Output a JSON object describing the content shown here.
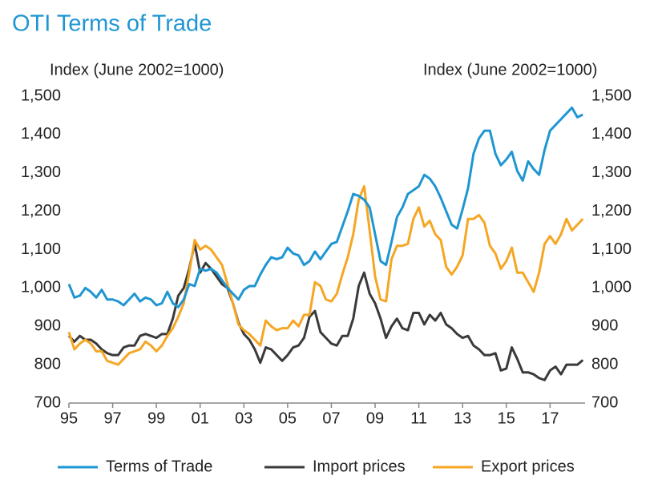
{
  "chart_data": {
    "type": "line",
    "title": "OTI Terms of Trade",
    "ylabel": "Index (June 2002=1000)",
    "y2label": "Index (June 2002=1000)",
    "x": [
      1995,
      1995.25,
      1995.5,
      1995.75,
      1996,
      1996.25,
      1996.5,
      1996.75,
      1997,
      1997.25,
      1997.5,
      1997.75,
      1998,
      1998.25,
      1998.5,
      1998.75,
      1999,
      1999.25,
      1999.5,
      1999.75,
      2000,
      2000.25,
      2000.5,
      2000.75,
      2001,
      2001.25,
      2001.5,
      2001.75,
      2002,
      2002.25,
      2002.5,
      2002.75,
      2003,
      2003.25,
      2003.5,
      2003.75,
      2004,
      2004.25,
      2004.5,
      2004.75,
      2005,
      2005.25,
      2005.5,
      2005.75,
      2006,
      2006.25,
      2006.5,
      2006.75,
      2007,
      2007.25,
      2007.5,
      2007.75,
      2008,
      2008.25,
      2008.5,
      2008.75,
      2009,
      2009.25,
      2009.5,
      2009.75,
      2010,
      2010.25,
      2010.5,
      2010.75,
      2011,
      2011.25,
      2011.5,
      2011.75,
      2012,
      2012.25,
      2012.5,
      2012.75,
      2013,
      2013.25,
      2013.5,
      2013.75,
      2014,
      2014.25,
      2014.5,
      2014.75,
      2015,
      2015.25,
      2015.5,
      2015.75,
      2016,
      2016.25,
      2016.5,
      2016.75,
      2017,
      2017.25,
      2017.5,
      2017.75,
      2018,
      2018.25,
      2018.5
    ],
    "series": [
      {
        "name": "Terms of Trade",
        "color": "#1f96d2",
        "values": [
          1010,
          975,
          980,
          1000,
          990,
          975,
          995,
          970,
          970,
          965,
          955,
          970,
          985,
          965,
          975,
          970,
          955,
          960,
          990,
          960,
          950,
          970,
          1010,
          1005,
          1050,
          1045,
          1050,
          1040,
          1020,
          1000,
          985,
          970,
          995,
          1005,
          1005,
          1035,
          1060,
          1080,
          1075,
          1080,
          1105,
          1090,
          1085,
          1060,
          1070,
          1095,
          1075,
          1095,
          1115,
          1120,
          1160,
          1200,
          1245,
          1240,
          1230,
          1210,
          1140,
          1070,
          1060,
          1120,
          1185,
          1210,
          1245,
          1255,
          1265,
          1295,
          1285,
          1265,
          1235,
          1200,
          1165,
          1155,
          1205,
          1260,
          1350,
          1390,
          1410,
          1410,
          1350,
          1320,
          1335,
          1355,
          1305,
          1280,
          1330,
          1310,
          1295,
          1360,
          1410,
          1425,
          1440,
          1455,
          1470,
          1445,
          1452
        ]
      },
      {
        "name": "Import prices",
        "color": "#3a3a3a",
        "values": [
          875,
          860,
          875,
          865,
          865,
          855,
          840,
          830,
          825,
          825,
          845,
          850,
          850,
          875,
          880,
          875,
          870,
          880,
          880,
          920,
          980,
          1000,
          1050,
          1115,
          1040,
          1065,
          1050,
          1030,
          1010,
          1000,
          960,
          910,
          880,
          865,
          840,
          805,
          845,
          840,
          825,
          810,
          825,
          845,
          850,
          870,
          925,
          940,
          885,
          870,
          855,
          850,
          875,
          875,
          920,
          1005,
          1040,
          985,
          960,
          920,
          870,
          900,
          920,
          895,
          890,
          935,
          935,
          905,
          930,
          915,
          935,
          905,
          895,
          880,
          870,
          875,
          850,
          840,
          825,
          825,
          830,
          785,
          790,
          845,
          815,
          780,
          780,
          775,
          765,
          760,
          785,
          795,
          775,
          800,
          800,
          800,
          812
        ]
      },
      {
        "name": "Export prices",
        "color": "#f5a623",
        "values": [
          885,
          840,
          855,
          865,
          855,
          835,
          835,
          810,
          805,
          800,
          815,
          830,
          835,
          840,
          860,
          850,
          835,
          850,
          875,
          895,
          925,
          960,
          1040,
          1125,
          1100,
          1110,
          1100,
          1080,
          1060,
          1010,
          960,
          905,
          890,
          880,
          865,
          850,
          915,
          900,
          890,
          895,
          895,
          915,
          900,
          930,
          930,
          1015,
          1005,
          970,
          965,
          985,
          1035,
          1080,
          1140,
          1230,
          1265,
          1150,
          1030,
          970,
          965,
          1075,
          1110,
          1110,
          1115,
          1180,
          1210,
          1160,
          1175,
          1140,
          1125,
          1055,
          1035,
          1055,
          1085,
          1180,
          1180,
          1190,
          1170,
          1110,
          1090,
          1050,
          1070,
          1105,
          1040,
          1040,
          1015,
          990,
          1040,
          1115,
          1135,
          1115,
          1140,
          1180,
          1150,
          1165,
          1180
        ]
      }
    ],
    "xlim": [
      1995,
      2018.6
    ],
    "xticks": [
      {
        "value": 1995,
        "label": "95"
      },
      {
        "value": 1997,
        "label": "97"
      },
      {
        "value": 1999,
        "label": "99"
      },
      {
        "value": 2001,
        "label": "01"
      },
      {
        "value": 2003,
        "label": "03"
      },
      {
        "value": 2005,
        "label": "05"
      },
      {
        "value": 2007,
        "label": "07"
      },
      {
        "value": 2009,
        "label": "09"
      },
      {
        "value": 2011,
        "label": "11"
      },
      {
        "value": 2013,
        "label": "13"
      },
      {
        "value": 2015,
        "label": "15"
      },
      {
        "value": 2017,
        "label": "17"
      }
    ],
    "ylim": [
      700,
      1500
    ],
    "yticks": [
      700,
      800,
      900,
      {
        "value": 1000,
        "label": "1,000"
      },
      {
        "value": 1100,
        "label": "1,100"
      },
      {
        "value": 1200,
        "label": "1,200"
      },
      {
        "value": 1300,
        "label": "1,300"
      },
      {
        "value": 1400,
        "label": "1,400"
      },
      {
        "value": 1500,
        "label": "1,500"
      }
    ],
    "y2lim": [
      700,
      1500
    ],
    "y2ticks": [
      700,
      800,
      900,
      {
        "value": 1000,
        "label": "1,000"
      },
      {
        "value": 1100,
        "label": "1,100"
      },
      {
        "value": 1200,
        "label": "1,200"
      },
      {
        "value": 1300,
        "label": "1,300"
      },
      {
        "value": 1400,
        "label": "1,400"
      },
      {
        "value": 1500,
        "label": "1,500"
      }
    ],
    "grid": false,
    "legend": "bottom"
  }
}
